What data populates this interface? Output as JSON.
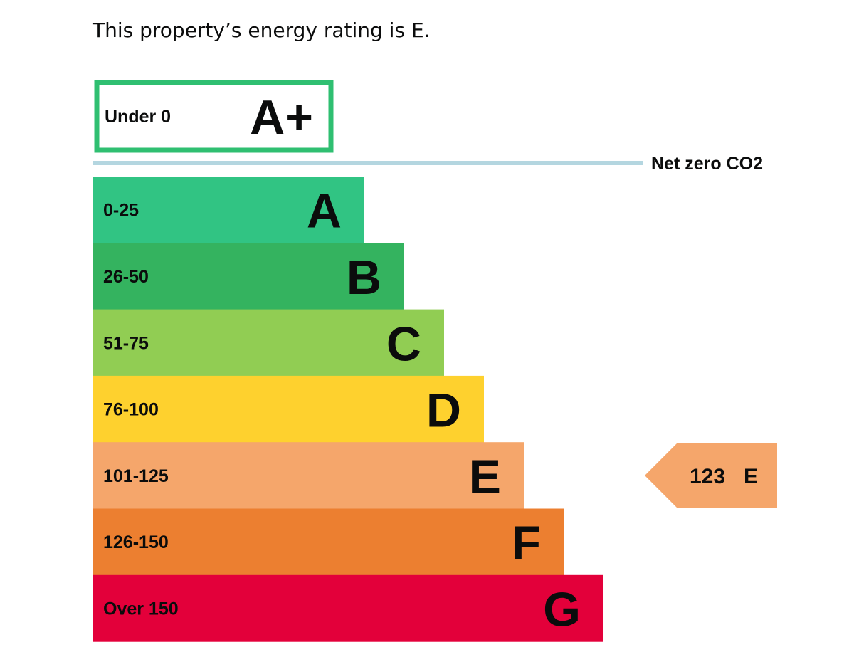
{
  "summary_text": "This property’s energy rating is E.",
  "chart_data": {
    "type": "bar",
    "title": "This property’s energy rating is E.",
    "top_band": {
      "range": "Under 0",
      "letter": "A+",
      "color": "#2fbf71"
    },
    "net_zero_label": "Net zero CO2",
    "net_zero_line_color": "#b4d6e0",
    "categories": [
      "A",
      "B",
      "C",
      "D",
      "E",
      "F",
      "G"
    ],
    "ranges": [
      "0-25",
      "26-50",
      "51-75",
      "76-100",
      "101-125",
      "126-150",
      "Over 150"
    ],
    "colors": [
      "#31c483",
      "#34b35f",
      "#91cd53",
      "#fed12e",
      "#f5a66b",
      "#ec7f30",
      "#e3003a"
    ],
    "current": {
      "score": "123",
      "letter": "E",
      "color": "#f5a66b"
    }
  }
}
